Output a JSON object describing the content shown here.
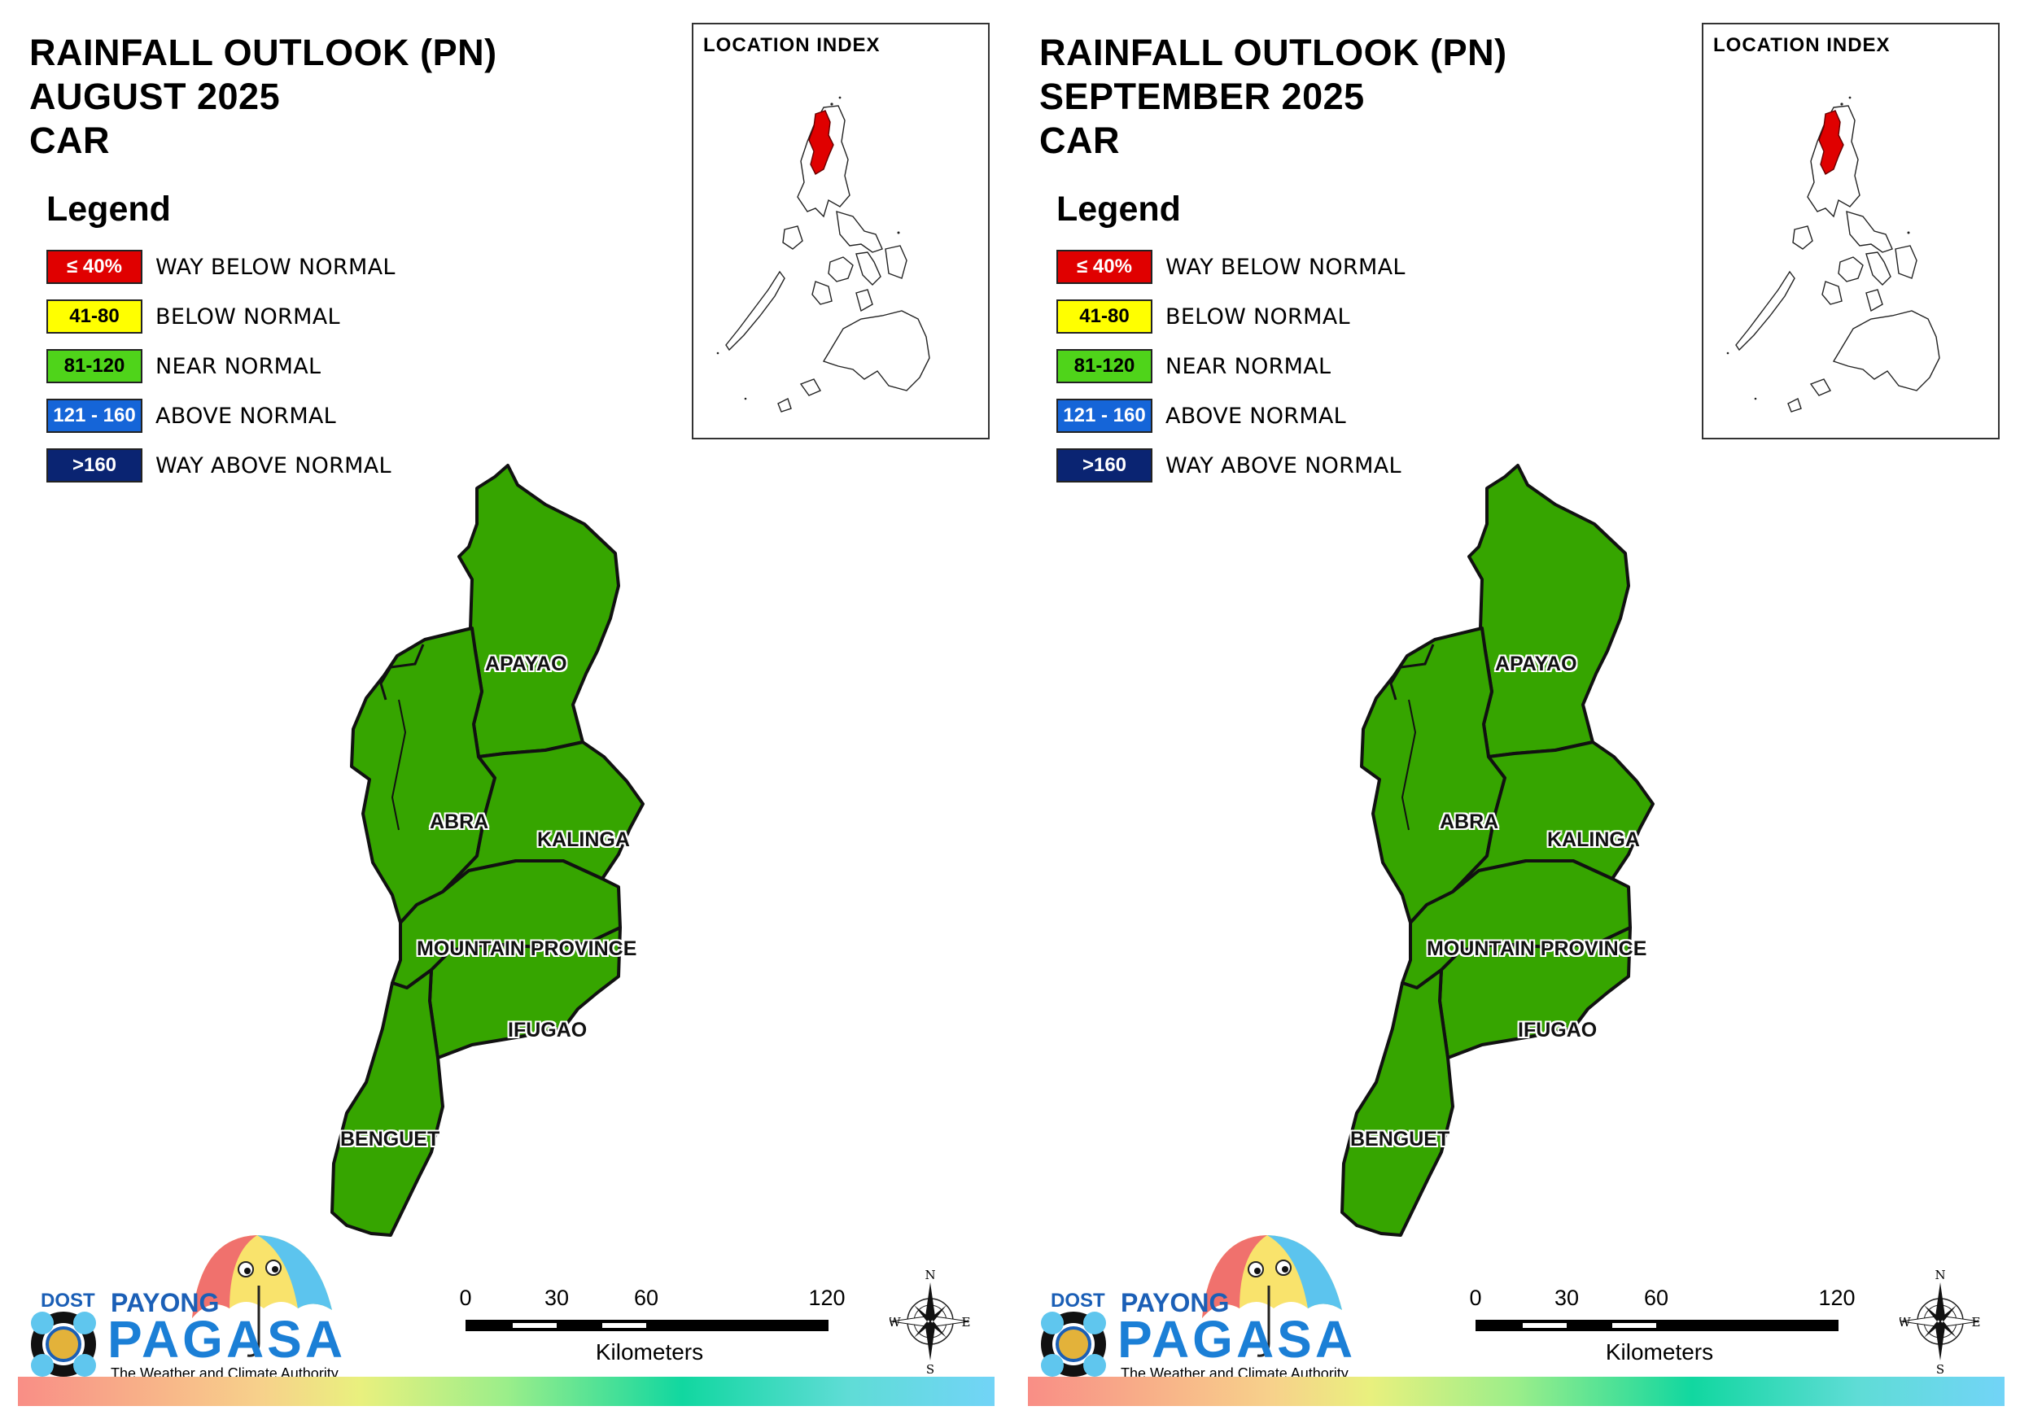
{
  "panels": [
    {
      "title": [
        "RAINFALL OUTLOOK (PN)",
        "AUGUST 2025",
        "CAR"
      ],
      "legend": {
        "heading": "Legend",
        "items": [
          {
            "swatch": "≤ 40%",
            "label": "WAY BELOW NORMAL",
            "color": "#e00000",
            "text_color": "#ffffff"
          },
          {
            "swatch": "41-80",
            "label": "BELOW NORMAL",
            "color": "#ffff00",
            "text_color": "#000000"
          },
          {
            "swatch": "81-120",
            "label": "NEAR NORMAL",
            "color": "#4fd41a",
            "text_color": "#000000"
          },
          {
            "swatch": "121 - 160",
            "label": "ABOVE NORMAL",
            "color": "#1565d8",
            "text_color": "#ffffff"
          },
          {
            "swatch": ">160",
            "label": "WAY ABOVE NORMAL",
            "color": "#0a2472",
            "text_color": "#ffffff"
          }
        ]
      },
      "location_index": {
        "title": "LOCATION INDEX"
      },
      "provinces": [
        {
          "name": "APAYAO",
          "category": "NEAR NORMAL"
        },
        {
          "name": "ABRA",
          "category": "NEAR NORMAL"
        },
        {
          "name": "KALINGA",
          "category": "NEAR NORMAL"
        },
        {
          "name": "MOUNTAIN PROVINCE",
          "category": "NEAR NORMAL"
        },
        {
          "name": "IFUGAO",
          "category": "NEAR NORMAL"
        },
        {
          "name": "BENGUET",
          "category": "NEAR NORMAL"
        }
      ],
      "province_fill": "#36a500",
      "logo": {
        "dost": "DOST",
        "payong": "PAYONG",
        "pagasa": "PAGASA",
        "tagline": "The Weather and Climate Authority"
      },
      "scale": {
        "ticks": [
          "0",
          "30",
          "60",
          "120"
        ],
        "unit": "Kilometers"
      },
      "compass": {
        "n": "N",
        "e": "E",
        "s": "S",
        "w": "W"
      }
    },
    {
      "title": [
        "RAINFALL OUTLOOK (PN)",
        "SEPTEMBER 2025",
        "CAR"
      ],
      "legend": {
        "heading": "Legend",
        "items": [
          {
            "swatch": "≤ 40%",
            "label": "WAY BELOW NORMAL",
            "color": "#e00000",
            "text_color": "#ffffff"
          },
          {
            "swatch": "41-80",
            "label": "BELOW NORMAL",
            "color": "#ffff00",
            "text_color": "#000000"
          },
          {
            "swatch": "81-120",
            "label": "NEAR NORMAL",
            "color": "#4fd41a",
            "text_color": "#000000"
          },
          {
            "swatch": "121 - 160",
            "label": "ABOVE NORMAL",
            "color": "#1565d8",
            "text_color": "#ffffff"
          },
          {
            "swatch": ">160",
            "label": "WAY ABOVE NORMAL",
            "color": "#0a2472",
            "text_color": "#ffffff"
          }
        ]
      },
      "location_index": {
        "title": "LOCATION INDEX"
      },
      "provinces": [
        {
          "name": "APAYAO",
          "category": "NEAR NORMAL"
        },
        {
          "name": "ABRA",
          "category": "NEAR NORMAL"
        },
        {
          "name": "KALINGA",
          "category": "NEAR NORMAL"
        },
        {
          "name": "MOUNTAIN PROVINCE",
          "category": "NEAR NORMAL"
        },
        {
          "name": "IFUGAO",
          "category": "NEAR NORMAL"
        },
        {
          "name": "BENGUET",
          "category": "NEAR NORMAL"
        }
      ],
      "province_fill": "#36a500",
      "logo": {
        "dost": "DOST",
        "payong": "PAYONG",
        "pagasa": "PAGASA",
        "tagline": "The Weather and Climate Authority"
      },
      "scale": {
        "ticks": [
          "0",
          "30",
          "60",
          "120"
        ],
        "unit": "Kilometers"
      },
      "compass": {
        "n": "N",
        "e": "E",
        "s": "S",
        "w": "W"
      }
    }
  ]
}
